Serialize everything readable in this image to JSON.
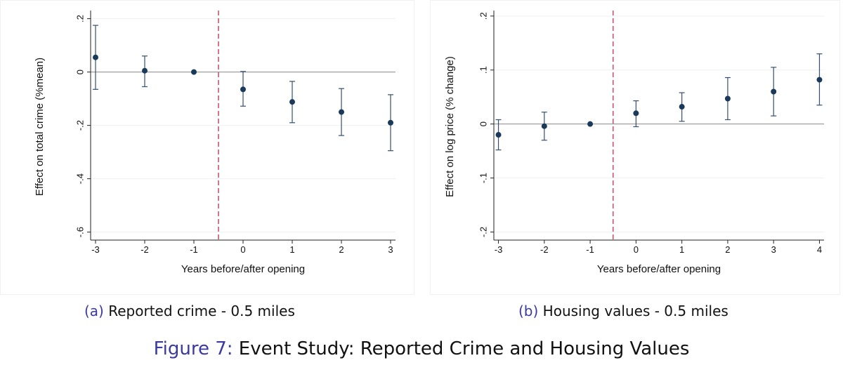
{
  "chart_data": [
    {
      "type": "scatter",
      "subtitle_tag": "(a)",
      "subtitle": "Reported crime - 0.5 miles",
      "xlabel": "Years before/after opening",
      "ylabel": "Effect on total crime (%mean)",
      "x_ticks": [
        -3,
        -2,
        -1,
        0,
        1,
        2,
        3
      ],
      "x_tick_labels": [
        "-3",
        "-2",
        "-1",
        "0",
        "1",
        "2",
        "3"
      ],
      "y_ticks": [
        0.2,
        0,
        -0.2,
        -0.4,
        -0.6
      ],
      "y_tick_labels": [
        ".2",
        "0",
        "-.2",
        "-.4",
        "-.6"
      ],
      "xlim": [
        -3.1,
        3.1
      ],
      "ylim": [
        -0.63,
        0.22
      ],
      "reference_line_x": -0.5,
      "series": [
        {
          "x": [
            -3,
            -2,
            -1,
            0,
            1,
            2,
            3
          ],
          "y": [
            0.055,
            0.005,
            0.0,
            -0.065,
            -0.112,
            -0.15,
            -0.19
          ],
          "ci_low": [
            -0.065,
            -0.055,
            0.0,
            -0.128,
            -0.19,
            -0.238,
            -0.295
          ],
          "ci_high": [
            0.175,
            0.06,
            0.0,
            0.002,
            -0.035,
            -0.062,
            -0.085
          ]
        }
      ],
      "grid": true
    },
    {
      "type": "scatter",
      "subtitle_tag": "(b)",
      "subtitle": "Housing values - 0.5 miles",
      "xlabel": "Years before/after opening",
      "ylabel": "Effect on log price (% change)",
      "x_ticks": [
        -3,
        -2,
        -1,
        0,
        1,
        2,
        3,
        4
      ],
      "x_tick_labels": [
        "-3",
        "-2",
        "-1",
        "0",
        "1",
        "2",
        "3",
        "4"
      ],
      "y_ticks": [
        0.2,
        0.1,
        0,
        -0.1,
        -0.2
      ],
      "y_tick_labels": [
        ".2",
        ".1",
        "0",
        "-.1",
        "-.2"
      ],
      "xlim": [
        -3.1,
        4.1
      ],
      "ylim": [
        -0.215,
        0.205
      ],
      "reference_line_x": -0.5,
      "series": [
        {
          "x": [
            -3,
            -2,
            -1,
            0,
            1,
            2,
            3,
            4
          ],
          "y": [
            -0.02,
            -0.004,
            0.0,
            0.02,
            0.032,
            0.047,
            0.06,
            0.082
          ],
          "ci_low": [
            -0.048,
            -0.03,
            0.0,
            -0.005,
            0.005,
            0.008,
            0.015,
            0.035
          ],
          "ci_high": [
            0.008,
            0.022,
            0.0,
            0.043,
            0.058,
            0.086,
            0.105,
            0.13
          ]
        }
      ],
      "grid": true
    }
  ],
  "figure_caption": {
    "tag": "Figure 7:",
    "text": "Event Study: Reported Crime and Housing Values"
  },
  "colors": {
    "marker": "#1a3a5c",
    "error_bar": "#34506e",
    "reference_line": "#c9536b",
    "zero_line": "#8a8a8a",
    "grid": "#eef0f3",
    "caption_tag": "#3a3aa0"
  }
}
